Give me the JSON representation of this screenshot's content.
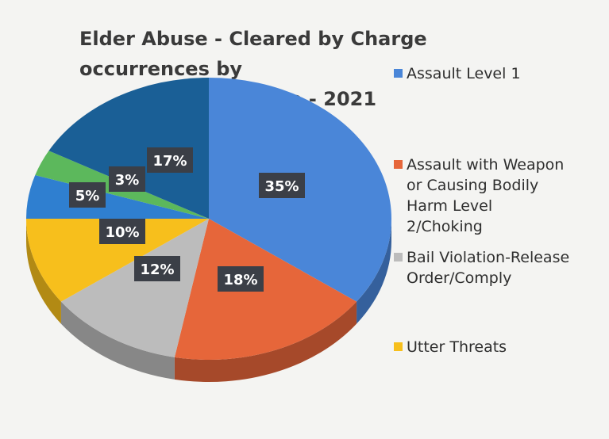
{
  "chart_data": {
    "type": "pie",
    "title": "Elder Abuse - Cleared by Charge occurrences by type - 2021",
    "title_lines": [
      "Elder Abuse - Cleared by Charge occurrences by",
      "type - 2021"
    ],
    "slices": [
      {
        "name": "Assault Level 1",
        "value": 35,
        "label": "35%",
        "color": "#4a86d8"
      },
      {
        "name": "Assault with Weapon or Causing Bodily Harm Level 2/Choking",
        "value": 18,
        "label": "18%",
        "color": "#e6663a"
      },
      {
        "name": "Bail Violation-Release Order/Comply",
        "value": 12,
        "label": "12%",
        "color": "#bcbcbc"
      },
      {
        "name": "Utter Threats",
        "value": 10,
        "label": "10%",
        "color": "#f7bf1c"
      },
      {
        "name": "",
        "value": 5,
        "label": "5%",
        "color": "#2f7fd0"
      },
      {
        "name": "",
        "value": 3,
        "label": "3%",
        "color": "#5cb85c"
      },
      {
        "name": "",
        "value": 17,
        "label": "17%",
        "color": "#1a5f96"
      }
    ],
    "legend": [
      {
        "lines": [
          "Assault Level 1"
        ],
        "color": "#4a86d8"
      },
      {
        "lines": [
          "Assault with Weapon",
          "or Causing Bodily",
          "Harm Level",
          "2/Choking"
        ],
        "color": "#e6663a"
      },
      {
        "lines": [
          "Bail Violation-Release",
          "Order/Comply"
        ],
        "color": "#bcbcbc"
      },
      {
        "lines": [
          "Utter Threats"
        ],
        "color": "#f7bf1c"
      }
    ],
    "legend_position": "right"
  }
}
